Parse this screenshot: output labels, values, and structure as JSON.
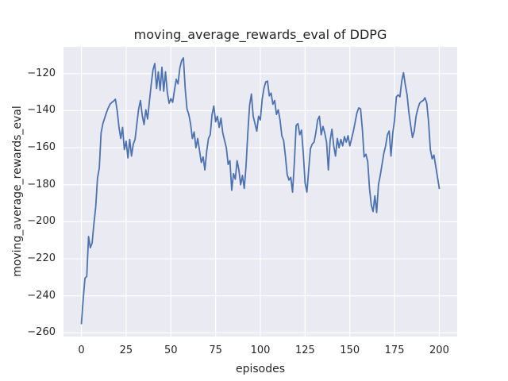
{
  "figure": {
    "title": "moving_average_rewards_eval of DDPG",
    "xlabel": "episodes",
    "ylabel": "moving_average_rewards_eval"
  },
  "chart_data": {
    "type": "line",
    "title": "moving_average_rewards_eval of DDPG",
    "xlabel": "episodes",
    "ylabel": "moving_average_rewards_eval",
    "xlim": [
      -10,
      210
    ],
    "ylim": [
      -262,
      -105.5
    ],
    "grid": true,
    "legend": "none",
    "x_ticks": [
      0,
      25,
      50,
      75,
      100,
      125,
      150,
      175,
      200
    ],
    "x_tick_labels": [
      "0",
      "25",
      "50",
      "75",
      "100",
      "125",
      "150",
      "175",
      "200"
    ],
    "y_ticks": [
      -120,
      -140,
      -160,
      -180,
      -200,
      -220,
      -240,
      -260
    ],
    "y_tick_labels": [
      "−120",
      "−140",
      "−160",
      "−180",
      "−200",
      "−220",
      "−240",
      "−260"
    ],
    "colors": {
      "line": "#4c72b0",
      "axes_background": "#eaeaf2",
      "grid": "#ffffff",
      "text": "#262626",
      "figure_background": "#ffffff"
    },
    "series": [
      {
        "name": "moving_average_rewards_eval",
        "x_start": 0,
        "x_step": 1,
        "values": [
          -255,
          -242,
          -230.5,
          -229.5,
          -208,
          -214,
          -211.5,
          -201,
          -192,
          -176.5,
          -171,
          -152,
          -147,
          -144,
          -141,
          -138.5,
          -136.5,
          -135.5,
          -134.8,
          -133.8,
          -140,
          -149,
          -155,
          -149,
          -161,
          -156.5,
          -165.5,
          -155.5,
          -164.5,
          -158,
          -155.5,
          -147,
          -139,
          -134.5,
          -142.5,
          -147.5,
          -139.5,
          -144.5,
          -135,
          -126,
          -118,
          -114.5,
          -128,
          -119,
          -129,
          -116.5,
          -129.5,
          -119,
          -130,
          -136,
          -133.5,
          -135.5,
          -129,
          -123,
          -125.5,
          -117,
          -113,
          -111.5,
          -128,
          -139,
          -142,
          -147,
          -155,
          -151.5,
          -160,
          -155,
          -161.5,
          -168,
          -165,
          -172,
          -162,
          -155,
          -153,
          -142,
          -137.5,
          -146,
          -143,
          -149,
          -144,
          -152,
          -156,
          -160,
          -169,
          -167,
          -183,
          -174,
          -177,
          -167,
          -172,
          -180,
          -175,
          -182,
          -170,
          -152,
          -137,
          -131,
          -143,
          -147,
          -151,
          -143,
          -145,
          -134,
          -128,
          -124.5,
          -124,
          -132,
          -130.5,
          -136.5,
          -134.5,
          -142,
          -139.5,
          -145,
          -153.5,
          -156,
          -164.5,
          -174.5,
          -177.5,
          -176,
          -184,
          -168,
          -148,
          -147,
          -153,
          -150.5,
          -163,
          -179,
          -184,
          -172,
          -160.5,
          -158,
          -157,
          -152,
          -145,
          -143,
          -153,
          -148.5,
          -152,
          -157,
          -172,
          -156,
          -150,
          -159,
          -164.5,
          -155,
          -160,
          -155.5,
          -159,
          -154,
          -157,
          -153.5,
          -159,
          -155,
          -151,
          -146,
          -141,
          -138.5,
          -139,
          -150,
          -165,
          -163.5,
          -167.5,
          -182,
          -191,
          -194.5,
          -186,
          -195,
          -180,
          -175,
          -169,
          -163,
          -159,
          -153,
          -151,
          -164.5,
          -152,
          -145,
          -132.5,
          -131.5,
          -132.5,
          -124,
          -119.5,
          -126,
          -131.5,
          -141,
          -148,
          -154.5,
          -151,
          -143,
          -139,
          -136,
          -135,
          -134.5,
          -133,
          -136,
          -146,
          -161,
          -166,
          -164,
          -170,
          -176,
          -182
        ]
      }
    ]
  }
}
